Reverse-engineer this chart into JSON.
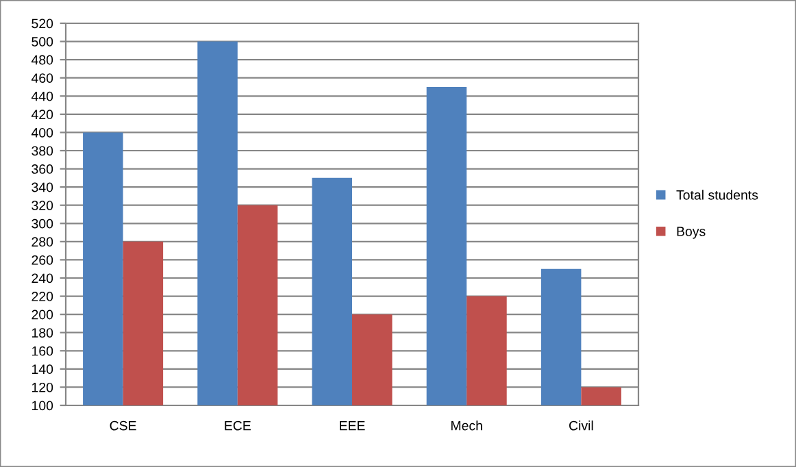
{
  "chart_data": {
    "type": "bar",
    "categories": [
      "CSE",
      "ECE",
      "EEE",
      "Mech",
      "Civil"
    ],
    "series": [
      {
        "name": "Total students",
        "color": "#4f81bd",
        "values": [
          400,
          500,
          350,
          450,
          250
        ]
      },
      {
        "name": "Boys",
        "color": "#c0504d",
        "values": [
          280,
          320,
          200,
          220,
          120
        ]
      }
    ],
    "ylim": [
      100,
      520
    ],
    "yticks": [
      100,
      120,
      140,
      160,
      180,
      200,
      220,
      240,
      260,
      280,
      300,
      320,
      340,
      360,
      380,
      400,
      420,
      440,
      460,
      480,
      500,
      520
    ],
    "grid": "y",
    "legend": "right"
  }
}
